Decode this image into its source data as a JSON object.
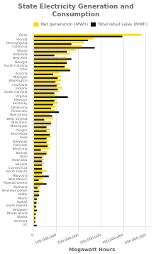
{
  "chart_data": {
    "type": "bar",
    "orientation": "horizontal",
    "title": "State Electricity Generation and Consumption",
    "xlabel": "Megawatt Hours",
    "categories": [
      "Texas",
      "Florida",
      "Pennsylvania",
      "California",
      "Illinois",
      "Alabama",
      "New York",
      "Georgia",
      "North Carolina",
      "Ohio",
      "Arizona",
      "Michigan",
      "Washington",
      "Louisiana",
      "Indiana",
      "South Carolina",
      "Virginia",
      "Missouri",
      "Kentucky",
      "Oklahoma",
      "Tennessee",
      "New Jersey",
      "West Virginia",
      "Wisconsin",
      "Mississippi",
      "Oregon",
      "Minnesota",
      "Iowa",
      "Arkansas",
      "Colorado",
      "Wyoming",
      "Kansas",
      "Utah",
      "Nebraska",
      "Nevada",
      "Connecticut",
      "North Dakota",
      "Maryland",
      "New Mexico",
      "Massachusetts",
      "Montana",
      "New Hampshire",
      "Idaho",
      "Maine",
      "Hawaii",
      "South Dakota",
      "Delaware",
      "Rhode Island",
      "Alaska",
      "Vermont",
      "DC"
    ],
    "series": [
      {
        "name": "Net generation (MWh)",
        "color": "#FFD700",
        "values": [
          480000000,
          265000000,
          225000000,
          215000000,
          190000000,
          160000000,
          145000000,
          148000000,
          142000000,
          158000000,
          112000000,
          122000000,
          122000000,
          118000000,
          128000000,
          112000000,
          96000000,
          102000000,
          107000000,
          97000000,
          97000000,
          72000000,
          87000000,
          77000000,
          72000000,
          72000000,
          72000000,
          77000000,
          67000000,
          67000000,
          72000000,
          62000000,
          46000000,
          46000000,
          46000000,
          36000000,
          57000000,
          36000000,
          41000000,
          42000000,
          29000000,
          23000000,
          23000000,
          16000000,
          12000000,
          11000000,
          6000000,
          8000000,
          8000000,
          7000000,
          2000000
        ]
      },
      {
        "name": "Total retail sales (MWh)",
        "color": "#111111",
        "values": [
          395000000,
          242000000,
          168000000,
          272000000,
          148000000,
          92000000,
          168000000,
          148000000,
          138000000,
          163000000,
          87000000,
          107000000,
          97000000,
          102000000,
          107000000,
          92000000,
          152000000,
          92000000,
          87000000,
          77000000,
          112000000,
          82000000,
          47000000,
          77000000,
          57000000,
          57000000,
          72000000,
          57000000,
          57000000,
          62000000,
          32000000,
          57000000,
          37000000,
          37000000,
          37000000,
          37000000,
          37000000,
          67000000,
          22000000,
          57000000,
          17000000,
          24000000,
          24000000,
          14000000,
          12000000,
          11000000,
          14000000,
          9000000,
          8000000,
          7000000,
          13000000
        ]
      }
    ],
    "xlim": [
      0,
      520000000
    ],
    "xticks": [
      0,
      {
        "value": 100000000,
        "label": "100,000,000"
      },
      {
        "value": 200000000,
        "label": "200,000,000"
      },
      {
        "value": 300000000,
        "label": "300,000,000"
      },
      {
        "value": 400000000,
        "label": "400,000,000"
      },
      {
        "value": 500000000,
        "label": "500,000,000"
      }
    ],
    "grid": true,
    "legend": "upper right"
  }
}
